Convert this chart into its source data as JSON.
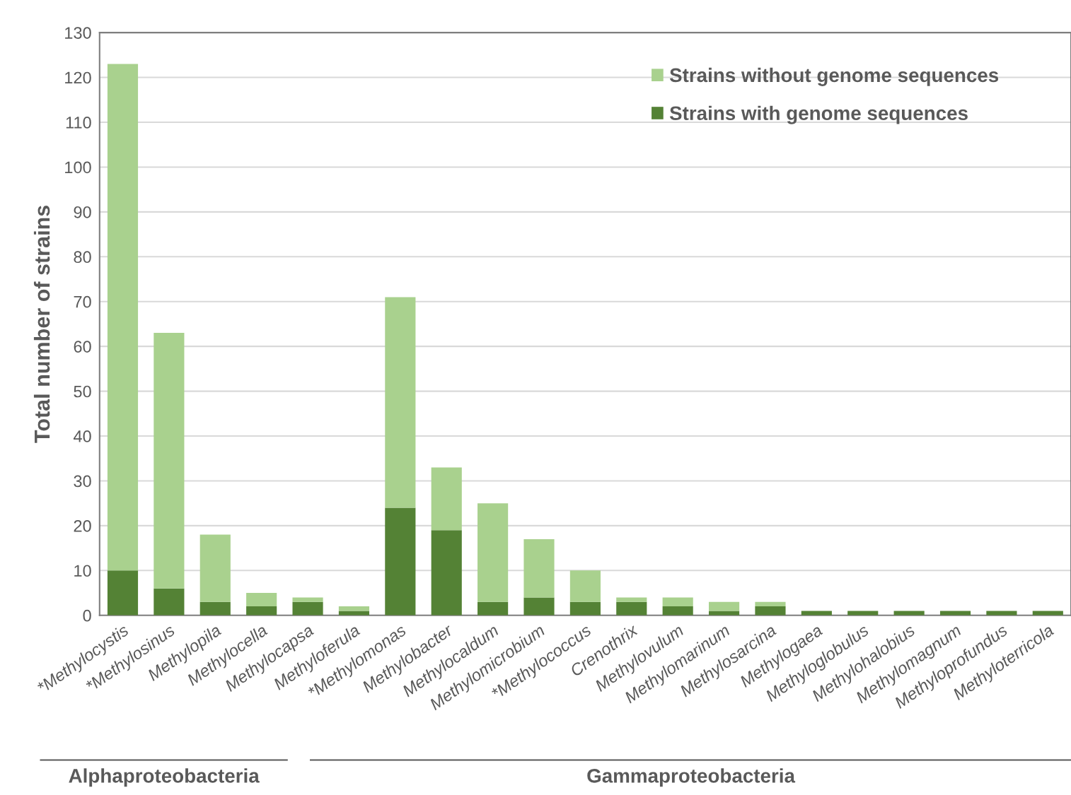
{
  "chart_data": {
    "type": "bar",
    "stacked": true,
    "ylabel": "Total number of strains",
    "categories": [
      "*Methylocystis",
      "*Methylosinus",
      "Methylopila",
      "Methylocella",
      "Methylocapsa",
      "Methyloferula",
      "*Methylomonas",
      "Methylobacter",
      "Methylocaldum",
      "Methylomicrobium",
      "*Methylococcus",
      "Crenothrix",
      "Methylovulum",
      "Methylomarinum",
      "Methylosarcina",
      "Methylogaea",
      "Methyloglobulus",
      "Methylohalobius",
      "Methylomagnum",
      "Methyloprofundus",
      "Methyloterricola"
    ],
    "series": [
      {
        "name": "Strains with genome sequences",
        "color": "#548235",
        "values": [
          10,
          6,
          3,
          2,
          3,
          1,
          24,
          19,
          3,
          4,
          3,
          3,
          2,
          1,
          2,
          1,
          1,
          1,
          1,
          1,
          1
        ]
      },
      {
        "name": "Strains without genome sequences",
        "color": "#a9d18e",
        "values": [
          113,
          57,
          15,
          3,
          1,
          1,
          47,
          14,
          22,
          13,
          7,
          1,
          2,
          2,
          1,
          0,
          0,
          0,
          0,
          0,
          0
        ]
      }
    ],
    "ylim": [
      0,
      130
    ],
    "yticks": [
      0,
      10,
      20,
      30,
      40,
      50,
      60,
      70,
      80,
      90,
      100,
      110,
      120,
      130
    ],
    "grid": "y",
    "legend": "top right",
    "annotations": [
      "Alphaproteobacteria",
      "Gammaproteobacteria"
    ]
  }
}
